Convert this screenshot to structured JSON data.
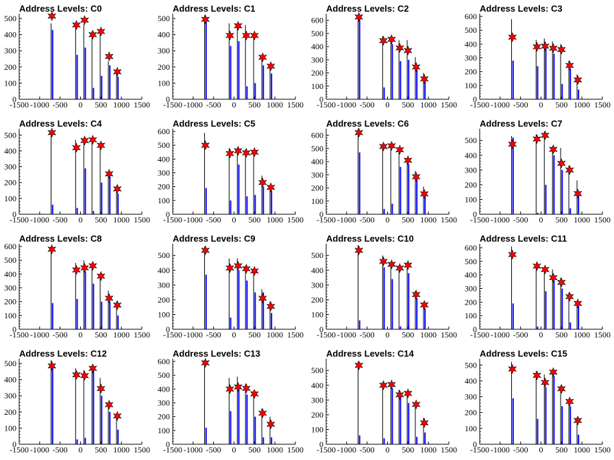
{
  "chart_data": [
    {
      "type": "bar",
      "title": "Address Levels: C0",
      "x_ticks": [
        "-1500",
        "-1000",
        "-500",
        "0",
        "500",
        "1000",
        "1500"
      ],
      "y_ticks": [
        "0",
        "100",
        "200",
        "300",
        "400",
        "500"
      ],
      "xlim": [
        -1500,
        1500
      ],
      "ylim": [
        0,
        530
      ],
      "series": [
        {
          "x": [
            -700,
            -100,
            100,
            300,
            500,
            700,
            900
          ],
          "bar_tops": [
            470,
            475,
            465,
            420,
            415,
            235,
            165
          ],
          "bar_low": [
            430,
            275,
            320,
            70,
            145,
            210,
            140
          ],
          "markers": [
            515,
            460,
            490,
            400,
            420,
            265,
            170
          ]
        }
      ]
    },
    {
      "type": "bar",
      "title": "Address Levels: C1",
      "x_ticks": [
        "-1500",
        "-1000",
        "-500",
        "0",
        "500",
        "1000",
        "1500"
      ],
      "y_ticks": [
        "0",
        "100",
        "200",
        "300",
        "400",
        "500"
      ],
      "xlim": [
        -1500,
        1500
      ],
      "ylim": [
        0,
        530
      ],
      "series": [
        {
          "x": [
            -700,
            -100,
            100,
            300,
            500,
            700,
            900
          ],
          "bar_tops": [
            520,
            470,
            470,
            460,
            410,
            260,
            215
          ],
          "bar_low": [
            500,
            330,
            360,
            80,
            100,
            210,
            160
          ],
          "markers": [
            495,
            395,
            455,
            395,
            395,
            260,
            205
          ]
        }
      ]
    },
    {
      "type": "bar",
      "title": "Address Levels: C2",
      "x_ticks": [
        "-1500",
        "-1000",
        "-500",
        "0",
        "500",
        "1000",
        "1500"
      ],
      "y_ticks": [
        "0",
        "100",
        "200",
        "300",
        "400",
        "500",
        "600"
      ],
      "xlim": [
        -1500,
        1500
      ],
      "ylim": [
        0,
        650
      ],
      "series": [
        {
          "x": [
            -700,
            -100,
            100,
            300,
            500,
            700,
            900
          ],
          "bar_tops": [
            640,
            480,
            480,
            450,
            450,
            320,
            200
          ],
          "bar_low": [
            630,
            90,
            420,
            290,
            300,
            240,
            160
          ],
          "markers": [
            625,
            445,
            455,
            390,
            370,
            245,
            155
          ]
        }
      ]
    },
    {
      "type": "bar",
      "title": "Address Levels: C3",
      "x_ticks": [
        "-1500",
        "-1000",
        "-500",
        "0",
        "500",
        "1000",
        "1500"
      ],
      "y_ticks": [
        "0",
        "100",
        "200",
        "300",
        "400",
        "500",
        "600"
      ],
      "xlim": [
        -1500,
        1500
      ],
      "ylim": [
        0,
        620
      ],
      "series": [
        {
          "x": [
            -700,
            -100,
            100,
            300,
            500,
            700,
            900
          ],
          "bar_tops": [
            580,
            430,
            440,
            420,
            400,
            280,
            180
          ],
          "bar_low": [
            280,
            240,
            380,
            330,
            110,
            220,
            70
          ],
          "markers": [
            450,
            380,
            385,
            370,
            360,
            245,
            140
          ]
        }
      ]
    },
    {
      "type": "bar",
      "title": "Address Levels: C4",
      "x_ticks": [
        "-1500",
        "-1000",
        "-500",
        "0",
        "500",
        "1000",
        "1500"
      ],
      "y_ticks": [
        "0",
        "100",
        "200",
        "300",
        "400",
        "500"
      ],
      "xlim": [
        -1500,
        1500
      ],
      "ylim": [
        0,
        540
      ],
      "series": [
        {
          "x": [
            -700,
            -100,
            100,
            300,
            500,
            700,
            900
          ],
          "bar_tops": [
            530,
            470,
            480,
            480,
            440,
            270,
            180
          ],
          "bar_low": [
            60,
            40,
            290,
            20,
            200,
            240,
            130
          ],
          "markers": [
            515,
            420,
            465,
            470,
            435,
            255,
            160
          ]
        }
      ]
    },
    {
      "type": "bar",
      "title": "Address Levels: C5",
      "x_ticks": [
        "-1500",
        "-1000",
        "-500",
        "0",
        "500",
        "1000",
        "1500"
      ],
      "y_ticks": [
        "0",
        "100",
        "200",
        "300",
        "400",
        "500",
        "600"
      ],
      "xlim": [
        -1500,
        1500
      ],
      "ylim": [
        0,
        620
      ],
      "series": [
        {
          "x": [
            -700,
            -100,
            100,
            300,
            500,
            700,
            900
          ],
          "bar_tops": [
            590,
            480,
            480,
            470,
            460,
            280,
            210
          ],
          "bar_low": [
            190,
            100,
            360,
            130,
            140,
            200,
            170
          ],
          "markers": [
            500,
            440,
            460,
            445,
            450,
            230,
            195
          ]
        }
      ]
    },
    {
      "type": "bar",
      "title": "Address Levels: C6",
      "x_ticks": [
        "-1500",
        "-1000",
        "-500",
        "0",
        "500",
        "1000",
        "1500"
      ],
      "y_ticks": [
        "0",
        "100",
        "200",
        "300",
        "400",
        "500",
        "600"
      ],
      "xlim": [
        -1500,
        1500
      ],
      "ylim": [
        0,
        650
      ],
      "series": [
        {
          "x": [
            -700,
            -100,
            100,
            300,
            500,
            700,
            900
          ],
          "bar_tops": [
            650,
            520,
            540,
            510,
            420,
            330,
            210
          ],
          "bar_low": [
            470,
            40,
            80,
            360,
            380,
            290,
            160
          ],
          "markers": [
            620,
            515,
            520,
            490,
            410,
            285,
            155
          ]
        }
      ]
    },
    {
      "type": "bar",
      "title": "Address Levels: C7",
      "x_ticks": [
        "-1500",
        "-1000",
        "-500",
        "0",
        "500",
        "1000",
        "1500"
      ],
      "y_ticks": [
        "0",
        "100",
        "200",
        "300",
        "400",
        "500"
      ],
      "xlim": [
        -1500,
        1500
      ],
      "ylim": [
        0,
        580
      ],
      "series": [
        {
          "x": [
            -700,
            -100,
            100,
            300,
            500,
            700,
            900
          ],
          "bar_tops": [
            530,
            540,
            560,
            460,
            450,
            330,
            230
          ],
          "bar_low": [
            520,
            10,
            200,
            400,
            300,
            40,
            130
          ],
          "markers": [
            475,
            510,
            535,
            440,
            345,
            300,
            140
          ]
        }
      ]
    },
    {
      "type": "bar",
      "title": "Address Levels: C8",
      "x_ticks": [
        "-1500",
        "-1000",
        "-500",
        "0",
        "500",
        "1000",
        "1500"
      ],
      "y_ticks": [
        "0",
        "100",
        "200",
        "300",
        "400",
        "500",
        "600"
      ],
      "xlim": [
        -1500,
        1500
      ],
      "ylim": [
        0,
        620
      ],
      "series": [
        {
          "x": [
            -700,
            -100,
            100,
            300,
            500,
            700,
            900
          ],
          "bar_tops": [
            600,
            480,
            500,
            470,
            400,
            280,
            200
          ],
          "bar_low": [
            190,
            220,
            420,
            330,
            200,
            200,
            100
          ],
          "markers": [
            580,
            430,
            445,
            460,
            385,
            225,
            175
          ]
        }
      ]
    },
    {
      "type": "bar",
      "title": "Address Levels: C9",
      "x_ticks": [
        "-1500",
        "-1000",
        "-500",
        "0",
        "500",
        "1000",
        "1500"
      ],
      "y_ticks": [
        "0",
        "100",
        "200",
        "300",
        "400",
        "500"
      ],
      "xlim": [
        -1500,
        1500
      ],
      "ylim": [
        0,
        580
      ],
      "series": [
        {
          "x": [
            -700,
            -100,
            100,
            300,
            500,
            700,
            900
          ],
          "bar_tops": [
            560,
            480,
            480,
            430,
            400,
            270,
            190
          ],
          "bar_low": [
            370,
            80,
            400,
            330,
            250,
            250,
            110
          ],
          "markers": [
            535,
            415,
            430,
            410,
            395,
            210,
            155
          ]
        }
      ]
    },
    {
      "type": "bar",
      "title": "Address Levels: C10",
      "x_ticks": [
        "-1500",
        "-1000",
        "-500",
        "0",
        "500",
        "1000",
        "1500"
      ],
      "y_ticks": [
        "0",
        "100",
        "200",
        "300",
        "400",
        "500"
      ],
      "xlim": [
        -1500,
        1500
      ],
      "ylim": [
        0,
        580
      ],
      "series": [
        {
          "x": [
            -700,
            -100,
            100,
            300,
            500,
            700,
            900
          ],
          "bar_tops": [
            570,
            500,
            450,
            420,
            440,
            260,
            180
          ],
          "bar_low": [
            60,
            420,
            340,
            20,
            380,
            210,
            140
          ],
          "markers": [
            535,
            460,
            440,
            415,
            435,
            235,
            165
          ]
        }
      ]
    },
    {
      "type": "bar",
      "title": "Address Levels: C11",
      "x_ticks": [
        "-1500",
        "-1000",
        "-500",
        "0",
        "500",
        "1000",
        "1500"
      ],
      "y_ticks": [
        "0",
        "100",
        "200",
        "300",
        "400",
        "500",
        "600"
      ],
      "xlim": [
        -1500,
        1500
      ],
      "ylim": [
        0,
        630
      ],
      "series": [
        {
          "x": [
            -700,
            -100,
            100,
            300,
            500,
            700,
            900
          ],
          "bar_tops": [
            610,
            470,
            460,
            440,
            380,
            270,
            210
          ],
          "bar_low": [
            190,
            20,
            280,
            360,
            300,
            50,
            170
          ],
          "markers": [
            550,
            465,
            440,
            380,
            345,
            240,
            190
          ]
        }
      ]
    },
    {
      "type": "bar",
      "title": "Address Levels: C12",
      "x_ticks": [
        "-1500",
        "-1000",
        "-500",
        "0",
        "500",
        "1000",
        "1500"
      ],
      "y_ticks": [
        "0",
        "100",
        "200",
        "300",
        "400",
        "500"
      ],
      "xlim": [
        -1500,
        1500
      ],
      "ylim": [
        0,
        530
      ],
      "series": [
        {
          "x": [
            -700,
            -100,
            100,
            300,
            500,
            700,
            900
          ],
          "bar_tops": [
            520,
            470,
            460,
            490,
            410,
            230,
            180
          ],
          "bar_low": [
            500,
            30,
            40,
            460,
            300,
            200,
            90
          ],
          "markers": [
            485,
            430,
            425,
            470,
            345,
            245,
            175
          ]
        }
      ]
    },
    {
      "type": "bar",
      "title": "Address Levels: C13",
      "x_ticks": [
        "-1500",
        "-1000",
        "-500",
        "0",
        "500",
        "1000",
        "1500"
      ],
      "y_ticks": [
        "0",
        "100",
        "200",
        "300",
        "400",
        "500",
        "600"
      ],
      "xlim": [
        -1500,
        1500
      ],
      "ylim": [
        0,
        620
      ],
      "series": [
        {
          "x": [
            -700,
            -100,
            100,
            300,
            500,
            700,
            900
          ],
          "bar_tops": [
            610,
            480,
            490,
            440,
            390,
            260,
            200
          ],
          "bar_low": [
            120,
            240,
            400,
            360,
            200,
            50,
            50
          ],
          "markers": [
            590,
            400,
            415,
            405,
            365,
            225,
            145
          ]
        }
      ]
    },
    {
      "type": "bar",
      "title": "Address Levels: C14",
      "x_ticks": [
        "-1500",
        "-1000",
        "-500",
        "0",
        "500",
        "1000",
        "1500"
      ],
      "y_ticks": [
        "0",
        "100",
        "200",
        "300",
        "400",
        "500"
      ],
      "xlim": [
        -1500,
        1500
      ],
      "ylim": [
        0,
        580
      ],
      "series": [
        {
          "x": [
            -700,
            -100,
            100,
            300,
            500,
            700,
            900
          ],
          "bar_tops": [
            560,
            420,
            420,
            370,
            360,
            280,
            180
          ],
          "bar_low": [
            60,
            40,
            380,
            320,
            280,
            50,
            80
          ],
          "markers": [
            535,
            400,
            405,
            335,
            345,
            270,
            145
          ]
        }
      ]
    },
    {
      "type": "bar",
      "title": "Address Levels: C15",
      "x_ticks": [
        "-1500",
        "-1000",
        "-500",
        "0",
        "500",
        "1000",
        "1500"
      ],
      "y_ticks": [
        "0",
        "100",
        "200",
        "300",
        "400",
        "500"
      ],
      "xlim": [
        -1500,
        1500
      ],
      "ylim": [
        0,
        540
      ],
      "series": [
        {
          "x": [
            -700,
            -100,
            100,
            300,
            500,
            700,
            900
          ],
          "bar_tops": [
            520,
            460,
            440,
            470,
            370,
            280,
            170
          ],
          "bar_low": [
            290,
            160,
            360,
            430,
            240,
            240,
            60
          ],
          "markers": [
            475,
            435,
            390,
            455,
            350,
            270,
            150
          ]
        }
      ]
    }
  ],
  "colors": {
    "bar_blue": "#0000ff",
    "bar_black": "#000000",
    "marker_red": "#ff0000",
    "axis": "#000000"
  }
}
